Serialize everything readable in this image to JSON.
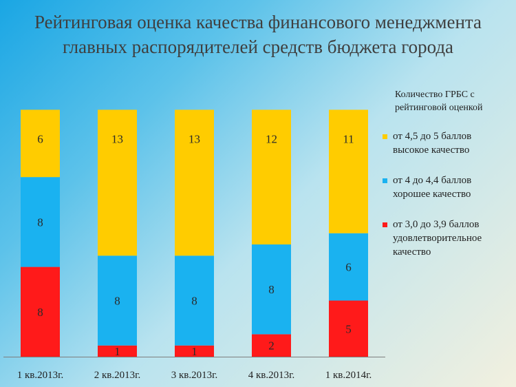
{
  "title_lines": [
    "Рейтинговая оценка качества финансового менеджмента",
    "главных распорядителей средств бюджета города"
  ],
  "legend": {
    "title": "Количество ГРБС с рейтинговой оценкой",
    "items": [
      {
        "label": "от 4,5 до 5 баллов высокое качество",
        "color": "#ffcc00"
      },
      {
        "label": "от 4 до 4,4 баллов хорошее качество",
        "color": "#1ab2f0"
      },
      {
        "label": "от 3,0 до 3,9 баллов удовлетворительное качество",
        "color": "#ff1a1a"
      }
    ]
  },
  "chart_data": {
    "type": "bar",
    "stacked": true,
    "categories": [
      "1 кв.2013г.",
      "2 кв.2013г.",
      "3 кв.2013г.",
      "4 кв.2013г.",
      "1 кв.2014г."
    ],
    "series": [
      {
        "name": "от 3,0 до 3,9 баллов удовлетворительное качество",
        "color": "#ff1a1a",
        "values": [
          8,
          1,
          1,
          2,
          5
        ]
      },
      {
        "name": "от 4 до 4,4 баллов хорошее качество",
        "color": "#1ab2f0",
        "values": [
          8,
          8,
          8,
          8,
          6
        ]
      },
      {
        "name": "от 4,5 до 5 баллов высокое качество",
        "color": "#ffcc00",
        "values": [
          6,
          13,
          13,
          12,
          11
        ]
      }
    ],
    "title": "Рейтинговая оценка качества финансового менеджмента главных распорядителей средств бюджета города",
    "xlabel": "",
    "ylabel": "",
    "ylim": [
      0,
      22
    ],
    "grid": false,
    "legend_position": "right"
  }
}
